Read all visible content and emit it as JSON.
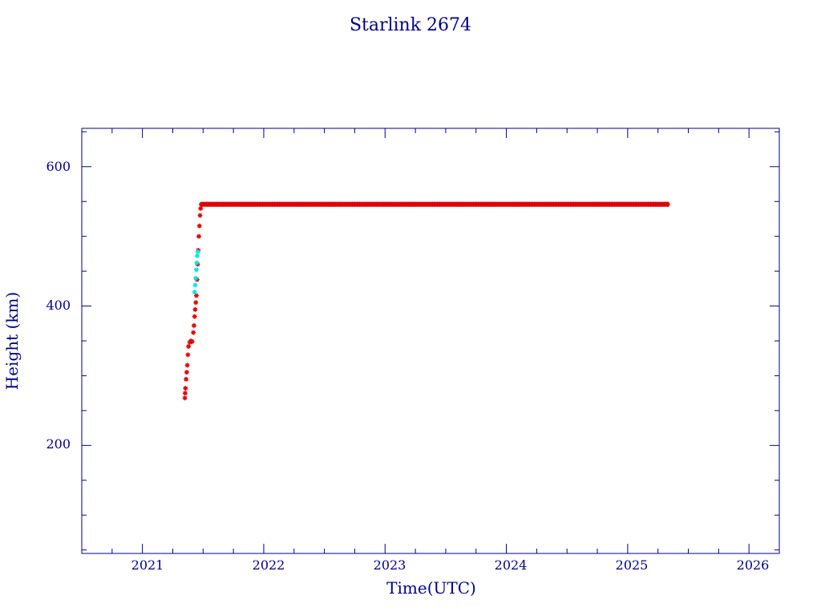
{
  "chart_data": {
    "type": "scatter",
    "title": "Starlink 2674",
    "xlabel": "Time(UTC)",
    "ylabel": "Height (km)",
    "xlim": [
      2020.5,
      2026.25
    ],
    "ylim": [
      45,
      655
    ],
    "x_major_ticks": [
      2021,
      2022,
      2023,
      2024,
      2025,
      2026
    ],
    "x_tick_labels": [
      "2021",
      "2022",
      "2023",
      "2024",
      "2025",
      "2026"
    ],
    "y_major_ticks": [
      200,
      400,
      600
    ],
    "y_tick_labels": [
      "200",
      "400",
      "600"
    ],
    "grid": false,
    "colors": {
      "axis": "#00008B",
      "primary": "#e00000",
      "secondary": "#00e5e5",
      "text": "#00008B"
    },
    "series": [
      {
        "marker": "star",
        "color": "#e00000",
        "points": [
          [
            2021.35,
            268
          ],
          [
            2021.352,
            275
          ],
          [
            2021.355,
            282
          ],
          [
            2021.36,
            295
          ],
          [
            2021.365,
            305
          ],
          [
            2021.37,
            315
          ],
          [
            2021.375,
            330
          ],
          [
            2021.38,
            342
          ],
          [
            2021.39,
            348
          ],
          [
            2021.4,
            350
          ],
          [
            2021.41,
            349
          ],
          [
            2021.42,
            362
          ],
          [
            2021.425,
            372
          ],
          [
            2021.43,
            385
          ],
          [
            2021.435,
            395
          ],
          [
            2021.44,
            405
          ],
          [
            2021.445,
            415
          ],
          [
            2021.45,
            438
          ],
          [
            2021.455,
            460
          ],
          [
            2021.46,
            480
          ],
          [
            2021.465,
            500
          ],
          [
            2021.47,
            515
          ],
          [
            2021.475,
            530
          ],
          [
            2021.48,
            540
          ],
          [
            2021.485,
            546
          ]
        ]
      },
      {
        "marker": "star",
        "color": "#00e5e5",
        "points": [
          [
            2021.43,
            420
          ],
          [
            2021.435,
            430
          ],
          [
            2021.44,
            440
          ],
          [
            2021.445,
            452
          ],
          [
            2021.448,
            462
          ],
          [
            2021.452,
            472
          ],
          [
            2021.456,
            478
          ]
        ]
      },
      {
        "marker": "star",
        "color": "#e00000",
        "from": 2021.49,
        "to": 2025.34,
        "height": 546
      }
    ]
  }
}
